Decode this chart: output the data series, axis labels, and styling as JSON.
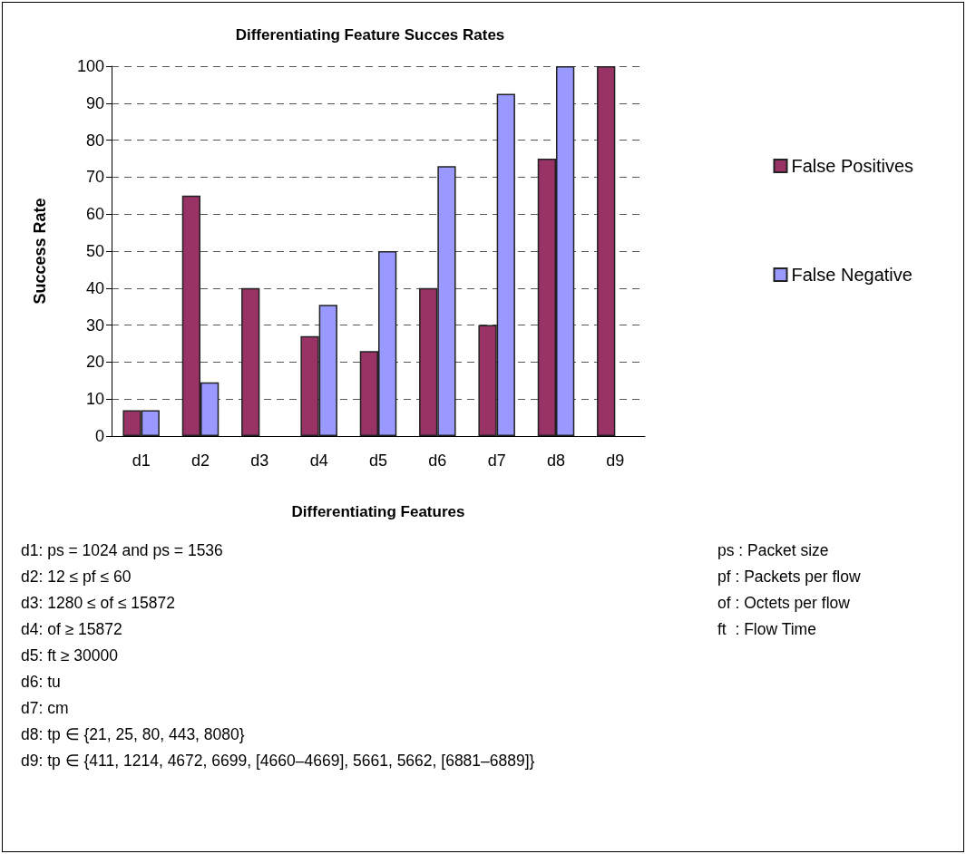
{
  "chart_data": {
    "type": "bar",
    "title": "Differentiating Feature Succes Rates",
    "xlabel": "Differentiating Features",
    "ylabel": "Success Rate",
    "categories": [
      "d1",
      "d2",
      "d3",
      "d4",
      "d5",
      "d6",
      "d7",
      "d8",
      "d9"
    ],
    "series": [
      {
        "name": "False Positives",
        "color": "#993366",
        "values": [
          7,
          65,
          40,
          27,
          23,
          40,
          30,
          75,
          100
        ]
      },
      {
        "name": "False Negative",
        "color": "#9999ff",
        "values": [
          7,
          14.5,
          null,
          35.5,
          50,
          73,
          92.5,
          100,
          null
        ]
      }
    ],
    "ylim": [
      0,
      100
    ],
    "yticks": [
      0,
      10,
      20,
      30,
      40,
      50,
      60,
      70,
      80,
      90,
      100
    ],
    "grid": "y",
    "legend": "right",
    "annotations": [
      "d1: ps = 1024 and ps = 1536",
      "d2: 12 ≤ pf ≤ 60",
      "d3: 1280 ≤ of ≤ 15872",
      "d4: of ≥ 15872",
      "d5: ft ≥ 30000",
      "d6: tu",
      "d7: cm",
      "d8: tp ∈ {21, 25, 80, 443, 8080}",
      "d9: tp ∈ {411, 1214, 4672, 6699, [4660–4669], 5661, 5662, [6881–6889]}",
      "ps : Packet size",
      "pf : Packets per flow",
      "of : Octets per flow",
      "ft  : Flow Time"
    ]
  }
}
